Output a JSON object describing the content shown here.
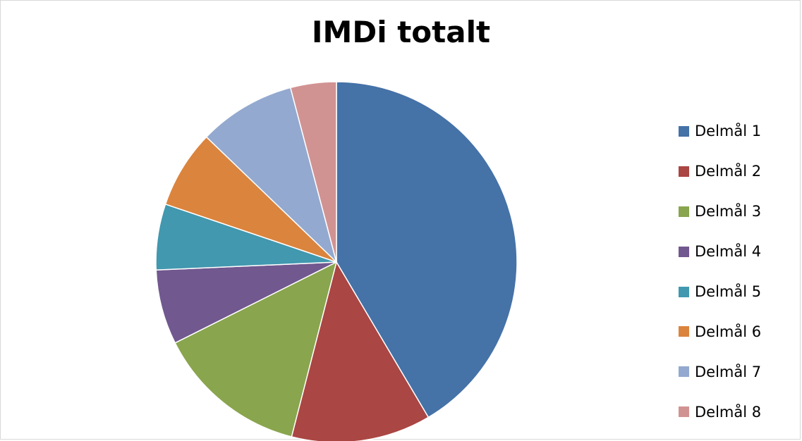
{
  "chart_data": {
    "type": "pie",
    "title": "IMDi totalt",
    "legend_position": "right",
    "categories": [
      "Delmål 1",
      "Delmål 2",
      "Delmål 3",
      "Delmål 4",
      "Delmål 5",
      "Delmål 6",
      "Delmål 7",
      "Delmål 8"
    ],
    "values": [
      41.5,
      12.5,
      13.6,
      6.7,
      5.9,
      7.0,
      8.7,
      4.1
    ],
    "colors": [
      "#4572a7",
      "#aa4643",
      "#89a54e",
      "#71588f",
      "#4198af",
      "#db843d",
      "#93a9cf",
      "#d19392"
    ]
  }
}
